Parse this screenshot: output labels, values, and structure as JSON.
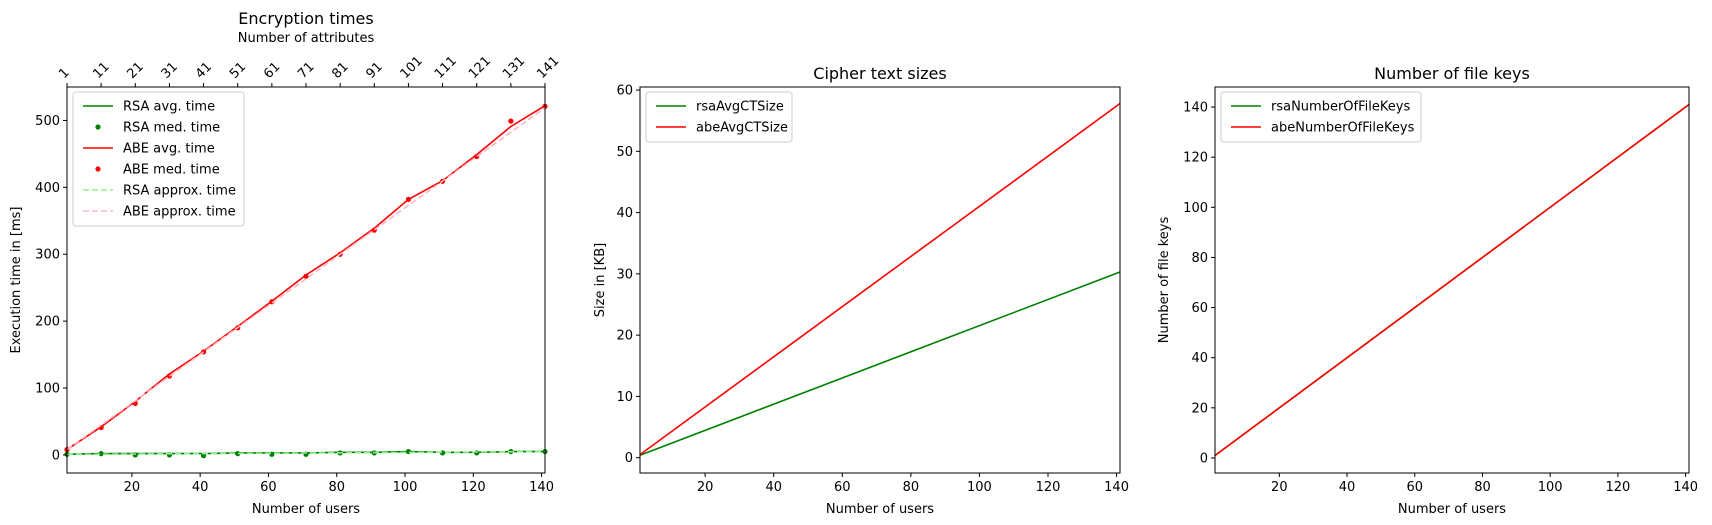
{
  "chart_data": [
    {
      "type": "line",
      "title": "Encryption times",
      "xlabel": "Number of users",
      "ylabel": "Execution time in [ms]",
      "xlim": [
        1,
        141
      ],
      "ylim": [
        -27,
        550
      ],
      "xticks": [
        20,
        40,
        60,
        80,
        100,
        120,
        140
      ],
      "yticks": [
        0,
        100,
        200,
        300,
        400,
        500
      ],
      "secondary_x_axis": {
        "label": "Number of attributes",
        "position": "top",
        "ticks": [
          1,
          11,
          21,
          31,
          41,
          51,
          61,
          71,
          81,
          91,
          101,
          111,
          121,
          131,
          141
        ]
      },
      "x": [
        1,
        11,
        21,
        31,
        41,
        51,
        61,
        71,
        81,
        91,
        101,
        111,
        121,
        131,
        141
      ],
      "legend_position": "top-left",
      "series": [
        {
          "name": "RSA avg. time",
          "style": "line",
          "color": "#008000",
          "values": [
            1,
            2,
            2,
            2,
            2,
            3,
            3,
            3,
            4,
            4,
            5,
            4,
            4,
            5,
            5
          ]
        },
        {
          "name": "RSA med. time",
          "style": "points",
          "color": "#008000",
          "values": [
            1,
            2,
            0,
            0,
            -1,
            2,
            1,
            1,
            3,
            3,
            5,
            3,
            3,
            5,
            5
          ]
        },
        {
          "name": "ABE avg. time",
          "style": "line",
          "color": "#ff0000",
          "values": [
            8,
            42,
            80,
            121,
            155,
            192,
            230,
            269,
            302,
            339,
            382,
            410,
            449,
            491,
            522
          ]
        },
        {
          "name": "ABE med. time",
          "style": "points",
          "color": "#ff0000",
          "values": [
            8,
            41,
            77,
            118,
            154,
            190,
            229,
            267,
            300,
            336,
            382,
            409,
            446,
            499,
            521
          ]
        },
        {
          "name": "RSA approx. time",
          "style": "dashed",
          "color": "#90ee90",
          "values": [
            0.8,
            1.1,
            1.4,
            1.7,
            2.0,
            2.3,
            2.6,
            2.9,
            3.2,
            3.5,
            3.8,
            4.1,
            4.4,
            4.7,
            5.0
          ]
        },
        {
          "name": "ABE approx. time",
          "style": "dashed",
          "color": "#ffb6c1",
          "values": [
            8,
            44.5,
            81,
            117.5,
            154,
            190.5,
            227,
            263.5,
            300,
            336.5,
            373,
            409.5,
            446,
            482.5,
            519
          ]
        }
      ]
    },
    {
      "type": "line",
      "title": "Cipher text sizes",
      "xlabel": "Number of users",
      "ylabel": "Size in [KB]",
      "xlim": [
        1,
        141
      ],
      "ylim": [
        -2.5,
        60.5
      ],
      "xticks": [
        20,
        40,
        60,
        80,
        100,
        120,
        140
      ],
      "yticks": [
        0,
        10,
        20,
        30,
        40,
        50,
        60
      ],
      "x": [
        1,
        141
      ],
      "legend_position": "top-left",
      "series": [
        {
          "name": "rsaAvgCTSize",
          "style": "line",
          "color": "#008000",
          "values": [
            0.4,
            30.3
          ]
        },
        {
          "name": "abeAvgCTSize",
          "style": "line",
          "color": "#ff0000",
          "values": [
            0.5,
            57.8
          ]
        }
      ]
    },
    {
      "type": "line",
      "title": "Number of file keys",
      "xlabel": "Number of users",
      "ylabel": "Number of file keys",
      "xlim": [
        1,
        141
      ],
      "ylim": [
        -6,
        148
      ],
      "xticks": [
        20,
        40,
        60,
        80,
        100,
        120,
        140
      ],
      "yticks": [
        0,
        20,
        40,
        60,
        80,
        100,
        120,
        140
      ],
      "x": [
        1,
        141
      ],
      "legend_position": "top-left",
      "series": [
        {
          "name": "rsaNumberOfFileKeys",
          "style": "line",
          "color": "#008000",
          "values": [
            1,
            141
          ]
        },
        {
          "name": "abeNumberOfFileKeys",
          "style": "line",
          "color": "#ff0000",
          "values": [
            1,
            141
          ]
        }
      ]
    }
  ]
}
